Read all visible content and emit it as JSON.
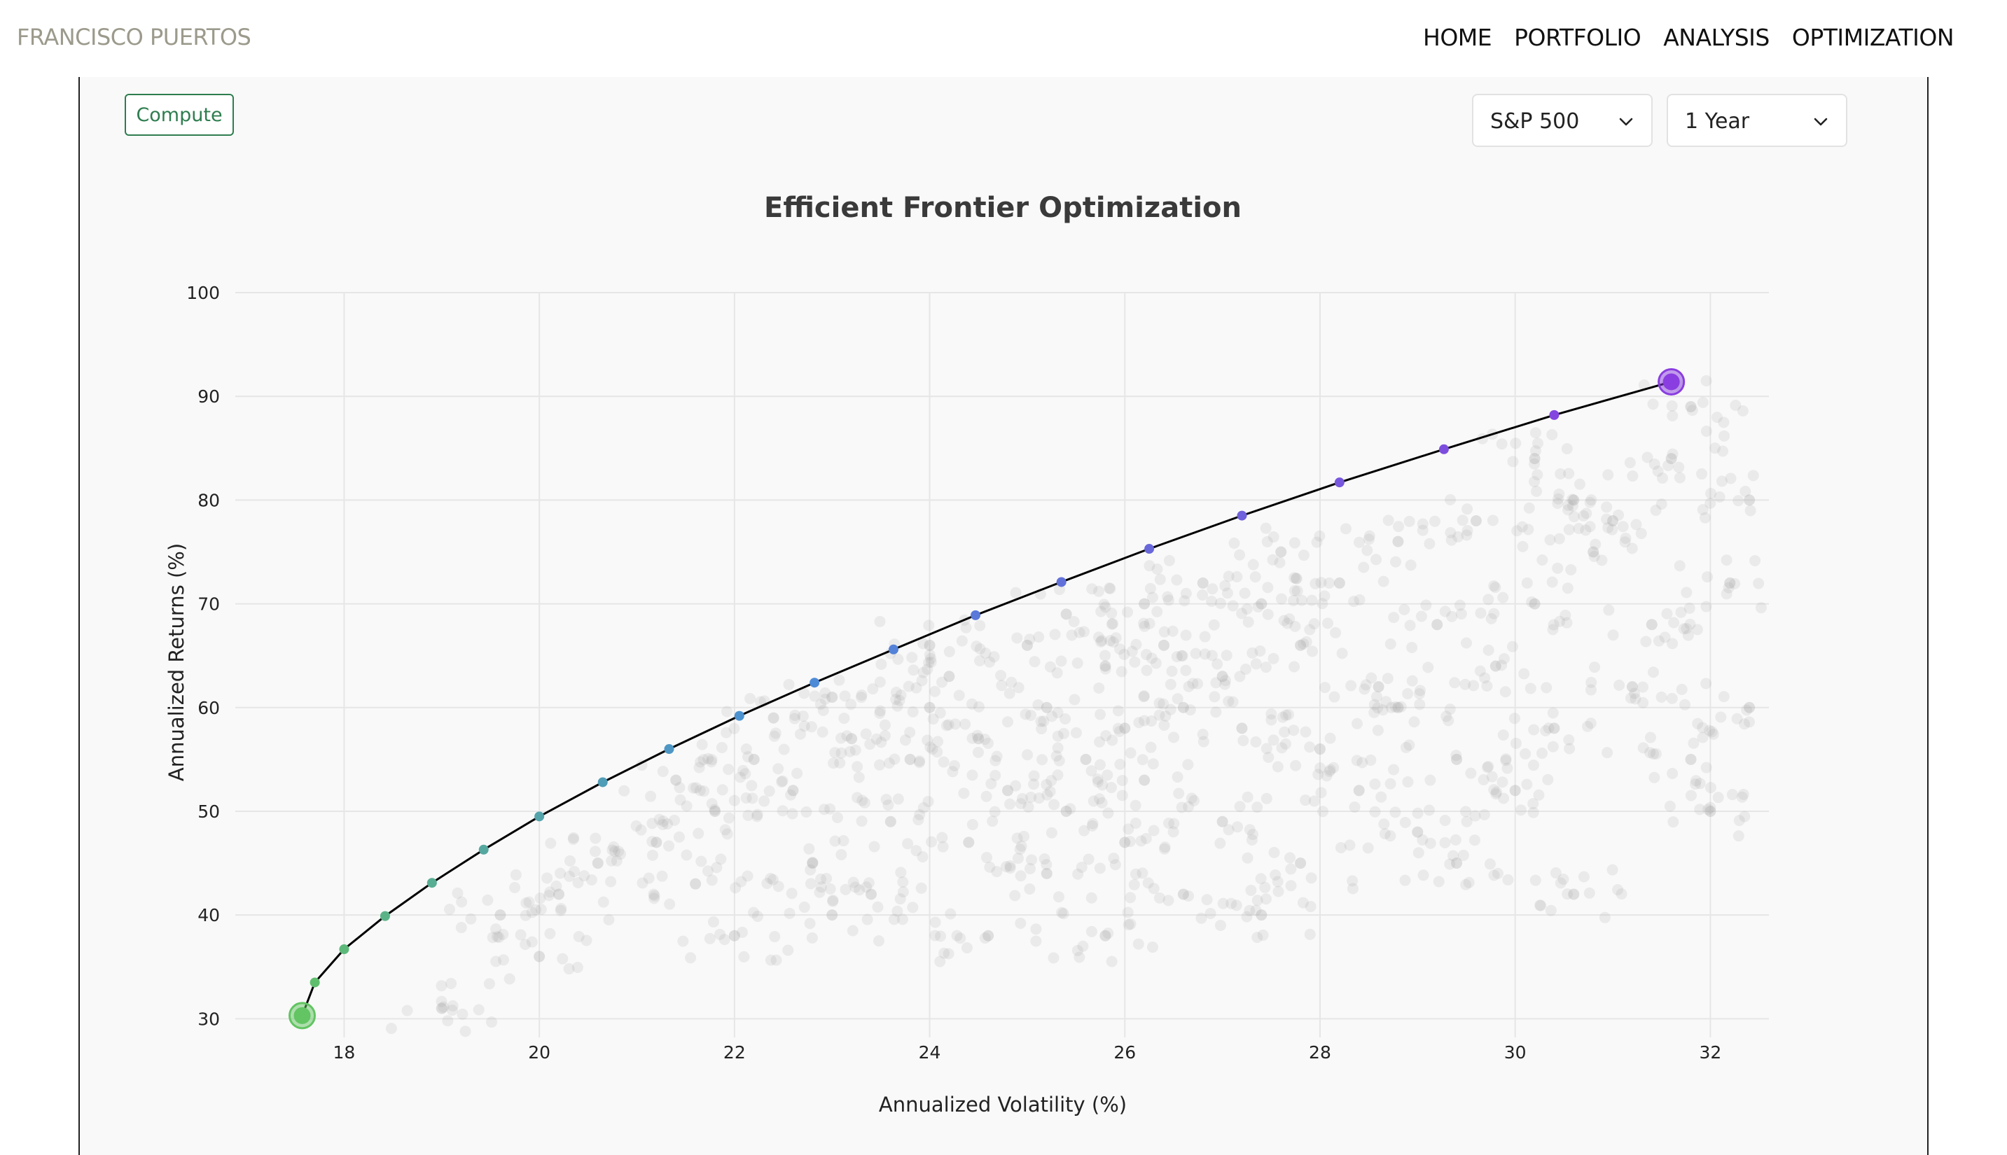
{
  "header": {
    "brand": "FRANCISCO PUERTOS",
    "nav": [
      "HOME",
      "PORTFOLIO",
      "ANALYSIS",
      "OPTIMIZATION"
    ]
  },
  "controls": {
    "compute_label": "Compute",
    "index_select": "S&P 500",
    "period_select": "1 Year"
  },
  "colors": {
    "frontier_start": "#62c462",
    "frontier_mid": "#4a8fd6",
    "frontier_end": "#8a3de0",
    "accent_button": "#2e7d4f"
  },
  "chart_data": {
    "type": "scatter",
    "title": "Efficient Frontier Optimization",
    "xlabel": "Annualized Volatility (%)",
    "ylabel": "Annualized Returns (%)",
    "xlim": [
      17.1,
      32.6
    ],
    "ylim": [
      28.2,
      100
    ],
    "x_ticks": [
      18,
      20,
      22,
      24,
      26,
      28,
      30,
      32
    ],
    "y_ticks": [
      30,
      40,
      50,
      60,
      70,
      80,
      90,
      100
    ],
    "grid": true,
    "series": [
      {
        "kind": "frontier",
        "points": [
          {
            "x": 17.57,
            "y": 30.3
          },
          {
            "x": 17.7,
            "y": 33.5
          },
          {
            "x": 18.0,
            "y": 36.7
          },
          {
            "x": 18.42,
            "y": 39.9
          },
          {
            "x": 18.9,
            "y": 43.1
          },
          {
            "x": 19.43,
            "y": 46.3
          },
          {
            "x": 20.0,
            "y": 49.5
          },
          {
            "x": 20.65,
            "y": 52.8
          },
          {
            "x": 21.33,
            "y": 56.0
          },
          {
            "x": 22.05,
            "y": 59.2
          },
          {
            "x": 22.82,
            "y": 62.4
          },
          {
            "x": 23.63,
            "y": 65.6
          },
          {
            "x": 24.47,
            "y": 68.9
          },
          {
            "x": 25.35,
            "y": 72.1
          },
          {
            "x": 26.25,
            "y": 75.3
          },
          {
            "x": 27.2,
            "y": 78.5
          },
          {
            "x": 28.2,
            "y": 81.7
          },
          {
            "x": 29.27,
            "y": 84.9
          },
          {
            "x": 30.4,
            "y": 88.2
          },
          {
            "x": 31.6,
            "y": 91.4
          }
        ]
      },
      {
        "kind": "simulated-portfolios",
        "color": "#9a9a9a",
        "points": [
          {
            "x": 24.5,
            "y": 57
          },
          {
            "x": 25.2,
            "y": 60
          },
          {
            "x": 26.0,
            "y": 58
          },
          {
            "x": 23.8,
            "y": 55
          },
          {
            "x": 22.6,
            "y": 52
          },
          {
            "x": 27.0,
            "y": 63
          },
          {
            "x": 25.8,
            "y": 64
          },
          {
            "x": 24.0,
            "y": 60
          },
          {
            "x": 23.2,
            "y": 57
          },
          {
            "x": 26.6,
            "y": 60
          },
          {
            "x": 27.8,
            "y": 66
          },
          {
            "x": 28.6,
            "y": 62
          },
          {
            "x": 21.8,
            "y": 50
          },
          {
            "x": 21.2,
            "y": 47
          },
          {
            "x": 22.2,
            "y": 55
          },
          {
            "x": 24.8,
            "y": 52
          },
          {
            "x": 25.6,
            "y": 55
          },
          {
            "x": 26.4,
            "y": 66
          },
          {
            "x": 27.4,
            "y": 70
          },
          {
            "x": 28.2,
            "y": 72
          },
          {
            "x": 29.2,
            "y": 68
          },
          {
            "x": 30.2,
            "y": 70
          },
          {
            "x": 29.8,
            "y": 64
          },
          {
            "x": 30.8,
            "y": 75
          },
          {
            "x": 31.4,
            "y": 68
          },
          {
            "x": 32.2,
            "y": 72
          },
          {
            "x": 20.6,
            "y": 45
          },
          {
            "x": 20.2,
            "y": 42
          },
          {
            "x": 19.6,
            "y": 40
          },
          {
            "x": 23.6,
            "y": 49
          },
          {
            "x": 24.4,
            "y": 47
          },
          {
            "x": 25.4,
            "y": 50
          },
          {
            "x": 26.2,
            "y": 53
          },
          {
            "x": 27.2,
            "y": 58
          },
          {
            "x": 28.0,
            "y": 56
          },
          {
            "x": 28.8,
            "y": 60
          },
          {
            "x": 22.8,
            "y": 45
          },
          {
            "x": 23.4,
            "y": 42
          },
          {
            "x": 21.6,
            "y": 43
          },
          {
            "x": 24.2,
            "y": 63
          },
          {
            "x": 25.0,
            "y": 66
          },
          {
            "x": 26.8,
            "y": 72
          },
          {
            "x": 27.6,
            "y": 75
          },
          {
            "x": 29.6,
            "y": 78
          },
          {
            "x": 30.6,
            "y": 80
          },
          {
            "x": 31.6,
            "y": 84
          },
          {
            "x": 31.2,
            "y": 62
          },
          {
            "x": 31.8,
            "y": 55
          },
          {
            "x": 30.4,
            "y": 58
          },
          {
            "x": 29.4,
            "y": 55
          },
          {
            "x": 26.0,
            "y": 47
          },
          {
            "x": 27.0,
            "y": 49
          },
          {
            "x": 25.2,
            "y": 44
          },
          {
            "x": 22.0,
            "y": 38
          },
          {
            "x": 20.0,
            "y": 36
          },
          {
            "x": 23.0,
            "y": 40
          },
          {
            "x": 28.4,
            "y": 52
          },
          {
            "x": 29.0,
            "y": 48
          },
          {
            "x": 30.0,
            "y": 52
          },
          {
            "x": 32.4,
            "y": 60
          },
          {
            "x": 32.0,
            "y": 50
          },
          {
            "x": 24.6,
            "y": 38
          },
          {
            "x": 26.6,
            "y": 42
          },
          {
            "x": 27.8,
            "y": 45
          },
          {
            "x": 21.4,
            "y": 53
          },
          {
            "x": 22.4,
            "y": 59
          },
          {
            "x": 23.0,
            "y": 61
          },
          {
            "x": 24.0,
            "y": 66
          },
          {
            "x": 25.4,
            "y": 69
          },
          {
            "x": 26.2,
            "y": 70
          },
          {
            "x": 28.8,
            "y": 76
          },
          {
            "x": 30.2,
            "y": 84
          },
          {
            "x": 31.8,
            "y": 89
          },
          {
            "x": 31.0,
            "y": 78
          },
          {
            "x": 32.4,
            "y": 80
          },
          {
            "x": 19.0,
            "y": 31
          },
          {
            "x": 25.8,
            "y": 38
          },
          {
            "x": 27.4,
            "y": 40
          },
          {
            "x": 30.6,
            "y": 42
          },
          {
            "x": 29.4,
            "y": 45
          }
        ]
      }
    ],
    "highlights": [
      {
        "label": "min-volatility",
        "x": 17.57,
        "y": 30.3
      },
      {
        "label": "max-return",
        "x": 31.6,
        "y": 91.4
      }
    ]
  }
}
